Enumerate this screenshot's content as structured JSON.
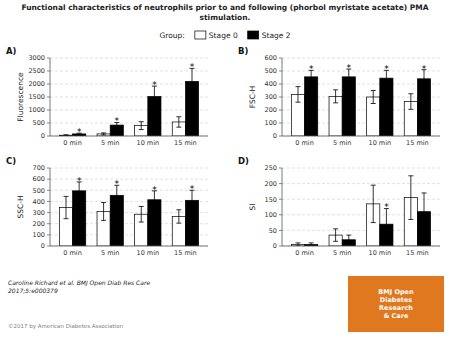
{
  "title": "Functional characteristics of neutrophils prior to and following (phorbol myristate acetate) PMA\nstimulation.",
  "legend_title": "Group:",
  "citation": "Caroline Richard et al. BMJ Open Diab Res Care\n2017;5:e000379",
  "copyright": "©2017 by American Diabetes Association",
  "bmj_text": "BMJ Open\nDiabetes\nResearch\n& Care",
  "bmj_box_color": "#e07820",
  "chart_data": [
    {
      "type": "bar",
      "title": "A)",
      "y_label": "Fluorescence",
      "grid": true,
      "legend": "top",
      "categories": [
        "0 min",
        "5 min",
        "10 min",
        "15 min"
      ],
      "ylim": [
        0,
        3000
      ],
      "yticks": [
        0,
        500,
        1000,
        1500,
        2000,
        2500,
        3000
      ],
      "series": [
        {
          "name": "Stage 0",
          "color": "#ffffff",
          "values": [
            30,
            80,
            400,
            540
          ],
          "errors": [
            20,
            40,
            150,
            200
          ]
        },
        {
          "name": "Stage 2",
          "color": "#000000",
          "values": [
            80,
            420,
            1520,
            2100
          ],
          "errors": [
            30,
            100,
            400,
            500
          ]
        }
      ],
      "annotations": [
        {
          "text": "*",
          "category": "0 min",
          "series": "Stage 2"
        },
        {
          "text": "*",
          "category": "5 min",
          "series": "Stage 2"
        },
        {
          "text": "*",
          "category": "10 min",
          "series": "Stage 2"
        },
        {
          "text": "*",
          "category": "15 min",
          "series": "Stage 2"
        }
      ]
    },
    {
      "type": "bar",
      "title": "B)",
      "y_label": "FSC-H",
      "grid": true,
      "legend": "top",
      "categories": [
        "0 min",
        "5 min",
        "10 min",
        "15 min"
      ],
      "ylim": [
        0,
        600
      ],
      "yticks": [
        0,
        100,
        200,
        300,
        400,
        500,
        600
      ],
      "series": [
        {
          "name": "Stage 0",
          "color": "#ffffff",
          "values": [
            320,
            305,
            300,
            265
          ],
          "errors": [
            60,
            50,
            50,
            60
          ]
        },
        {
          "name": "Stage 2",
          "color": "#000000",
          "values": [
            455,
            455,
            445,
            440
          ],
          "errors": [
            50,
            60,
            60,
            70
          ]
        }
      ],
      "annotations": [
        {
          "text": "*",
          "category": "0 min",
          "series": "Stage 2"
        },
        {
          "text": "*",
          "category": "5 min",
          "series": "Stage 2"
        },
        {
          "text": "*",
          "category": "10 min",
          "series": "Stage 2"
        },
        {
          "text": "*",
          "category": "15 min",
          "series": "Stage 2"
        }
      ]
    },
    {
      "type": "bar",
      "title": "C)",
      "y_label": "SSC-H",
      "grid": true,
      "legend": "top",
      "categories": [
        "0 min",
        "5 min",
        "10 min",
        "15 min"
      ],
      "ylim": [
        0,
        700
      ],
      "yticks": [
        0,
        100,
        200,
        300,
        400,
        500,
        600,
        700
      ],
      "series": [
        {
          "name": "Stage 0",
          "color": "#ffffff",
          "values": [
            345,
            310,
            285,
            265
          ],
          "errors": [
            100,
            80,
            70,
            60
          ]
        },
        {
          "name": "Stage 2",
          "color": "#000000",
          "values": [
            495,
            455,
            415,
            410
          ],
          "errors": [
            80,
            90,
            80,
            90
          ]
        }
      ],
      "annotations": [
        {
          "text": "*",
          "category": "0 min",
          "series": "Stage 2"
        },
        {
          "text": "*",
          "category": "5 min",
          "series": "Stage 2"
        },
        {
          "text": "*",
          "category": "10 min",
          "series": "Stage 2"
        },
        {
          "text": "*",
          "category": "15 min",
          "series": "Stage 2"
        }
      ]
    },
    {
      "type": "bar",
      "title": "D)",
      "y_label": "SI",
      "grid": true,
      "legend": "top",
      "categories": [
        "0 min",
        "5 min",
        "10 min",
        "15 min"
      ],
      "ylim": [
        0,
        250
      ],
      "yticks": [
        0,
        50,
        100,
        150,
        200,
        250
      ],
      "series": [
        {
          "name": "Stage 0",
          "color": "#ffffff",
          "values": [
            5,
            35,
            135,
            155
          ],
          "errors": [
            5,
            20,
            60,
            70
          ]
        },
        {
          "name": "Stage 2",
          "color": "#000000",
          "values": [
            5,
            20,
            70,
            110
          ],
          "errors": [
            5,
            15,
            50,
            60
          ]
        }
      ],
      "annotations": [
        {
          "text": "*",
          "category": "10 min",
          "series": "Stage 2"
        }
      ]
    }
  ]
}
